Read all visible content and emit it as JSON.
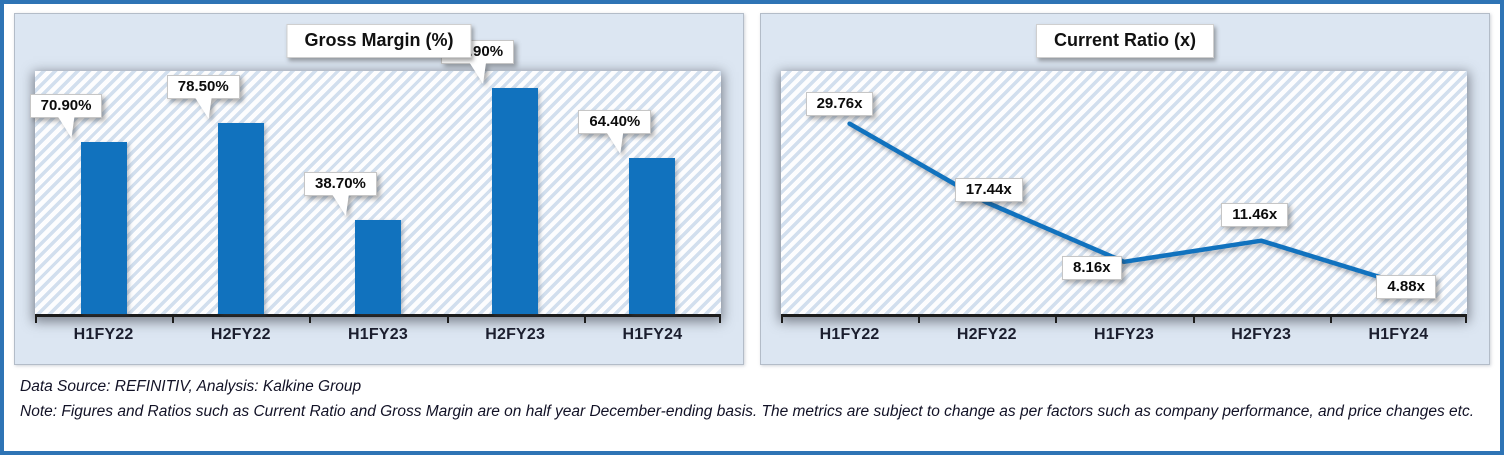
{
  "window": {
    "border_color": "#2E74B5",
    "background": "#ffffff",
    "panel_background": "#dce6f2",
    "hatch_stripe_color": "#d2dfee",
    "accent_blue": "#1172BE",
    "axis_color": "#1c1c1c"
  },
  "chart_data": [
    {
      "type": "bar",
      "title": "Gross Margin (%)",
      "categories": [
        "H1FY22",
        "H2FY22",
        "H1FY23",
        "H2FY23",
        "H1FY24"
      ],
      "values": [
        70.9,
        78.5,
        38.7,
        92.9,
        64.4
      ],
      "data_labels": [
        "70.90%",
        "78.50%",
        "38.70%",
        "92.90%",
        "64.40%"
      ],
      "xlabel": "",
      "ylabel": "",
      "ylim": [
        0,
        100
      ],
      "grid": false,
      "legend": "none",
      "bar_color": "#1172BE"
    },
    {
      "type": "line",
      "title": "Current Ratio (x)",
      "categories": [
        "H1FY22",
        "H2FY22",
        "H1FY23",
        "H2FY23",
        "H1FY24"
      ],
      "values": [
        29.76,
        17.44,
        8.16,
        11.46,
        4.88
      ],
      "data_labels": [
        "29.76x",
        "17.44x",
        "8.16x",
        "11.46x",
        "4.88x"
      ],
      "xlabel": "",
      "ylabel": "",
      "ylim": [
        0,
        38
      ],
      "grid": false,
      "legend": "none",
      "line_color": "#1172BE"
    }
  ],
  "footer": {
    "source_text": "Data Source: REFINITIV, Analysis: Kalkine Group",
    "note_text": "Note: Figures and Ratios such as Current Ratio and Gross Margin are on half year December-ending basis. The metrics are subject to change as per factors such as company performance, and price changes etc."
  }
}
